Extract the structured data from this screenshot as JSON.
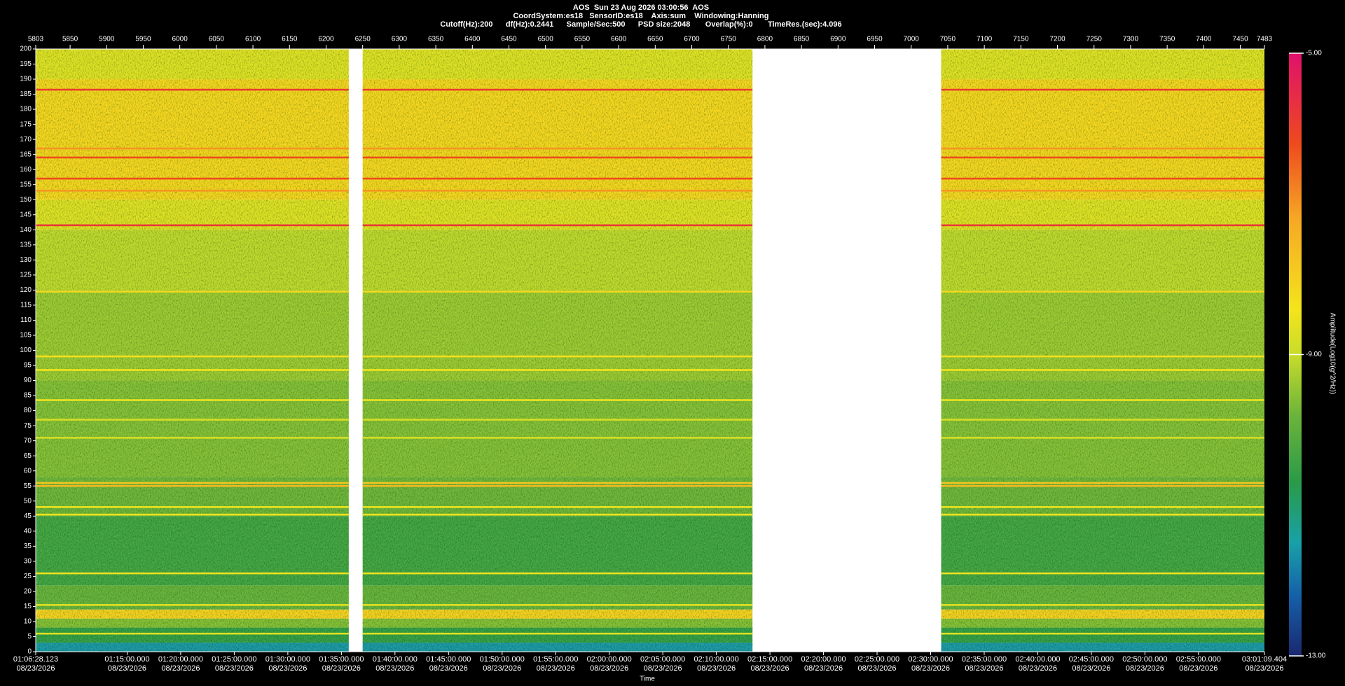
{
  "chart_data": {
    "type": "spectrogram",
    "title": "AOS  Sun 23 Aug 2026 03:00:56  AOS",
    "subtitle": [
      "CoordSystem:es18   SensorID:es18    Axis:sum    Windowing:Hanning",
      "Cutoff(Hz):200      df(Hz):0.2441      Sample/Sec:500      PSD size:2048       Overlap(%):0       TimeRes.(sec):4.096"
    ],
    "x_label": "Time",
    "xlim": [
      5803,
      7483
    ],
    "xticks": [
      5803,
      5850,
      5900,
      5950,
      6000,
      6050,
      6100,
      6150,
      6200,
      6250,
      6300,
      6350,
      6400,
      6450,
      6500,
      6550,
      6600,
      6650,
      6700,
      6750,
      6800,
      6850,
      6900,
      6950,
      7000,
      7050,
      7100,
      7150,
      7200,
      7250,
      7300,
      7350,
      7400,
      7450,
      7483
    ],
    "x2ticks": [
      {
        "value": 5803,
        "label": "01:06:28.123\n08/23/2026"
      },
      {
        "value": 5927.97,
        "label": "01:15:00.000\n08/23/2026"
      },
      {
        "value": 6001.21,
        "label": "01:20:00.000\n08/23/2026"
      },
      {
        "value": 6074.46,
        "label": "01:25:00.000\n08/23/2026"
      },
      {
        "value": 6147.7,
        "label": "01:30:00.000\n08/23/2026"
      },
      {
        "value": 6220.94,
        "label": "01:35:00.000\n08/23/2026"
      },
      {
        "value": 6294.18,
        "label": "01:40:00.000\n08/23/2026"
      },
      {
        "value": 6367.43,
        "label": "01:45:00.000\n08/23/2026"
      },
      {
        "value": 6440.67,
        "label": "01:50:00.000\n08/23/2026"
      },
      {
        "value": 6513.91,
        "label": "01:55:00.000\n08/23/2026"
      },
      {
        "value": 6587.15,
        "label": "02:00:00.000\n08/23/2026"
      },
      {
        "value": 6660.4,
        "label": "02:05:00.000\n08/23/2026"
      },
      {
        "value": 6733.64,
        "label": "02:10:00.000\n08/23/2026"
      },
      {
        "value": 6806.88,
        "label": "02:15:00.000\n08/23/2026"
      },
      {
        "value": 6880.12,
        "label": "02:20:00.000\n08/23/2026"
      },
      {
        "value": 6953.37,
        "label": "02:25:00.000\n08/23/2026"
      },
      {
        "value": 7026.61,
        "label": "02:30:00.000\n08/23/2026"
      },
      {
        "value": 7099.85,
        "label": "02:35:00.000\n08/23/2026"
      },
      {
        "value": 7173.09,
        "label": "02:40:00.000\n08/23/2026"
      },
      {
        "value": 7246.34,
        "label": "02:45:00.000\n08/23/2026"
      },
      {
        "value": 7319.58,
        "label": "02:50:00.000\n08/23/2026"
      },
      {
        "value": 7392.82,
        "label": "02:55:00.000\n08/23/2026"
      },
      {
        "value": 7483,
        "label": "03:01:09.404\n08/23/2026"
      }
    ],
    "ylim": [
      0,
      200
    ],
    "yticks": [
      0,
      5,
      10,
      15,
      20,
      25,
      30,
      35,
      40,
      45,
      50,
      55,
      60,
      65,
      70,
      75,
      80,
      85,
      90,
      95,
      100,
      105,
      110,
      115,
      120,
      125,
      130,
      135,
      140,
      145,
      150,
      155,
      160,
      165,
      170,
      175,
      180,
      185,
      190,
      195,
      200
    ],
    "segments": [
      [
        5803,
        6231
      ],
      [
        6250,
        6783
      ],
      [
        7041,
        7483
      ]
    ],
    "bands": {
      "edges": [
        0,
        3,
        8,
        11,
        14,
        22,
        45,
        58,
        90,
        120,
        140,
        150,
        190,
        200
      ],
      "values": [
        -11.6,
        -10.6,
        -9.6,
        -8.0,
        -9.9,
        -10.4,
        -9.8,
        -9.6,
        -9.4,
        -9.1,
        -8.7,
        -8.1,
        -8.7
      ]
    },
    "lines": {
      "freqs": [
        186.5,
        167,
        164,
        157,
        153,
        141.5,
        119.5,
        98,
        93.5,
        83.5,
        77,
        71,
        56,
        55,
        48,
        45.5,
        26,
        15.5,
        6
      ],
      "values": [
        -5.9,
        -7.0,
        -6.2,
        -6.2,
        -7.0,
        -5.8,
        -8.2,
        -8.3,
        -8.4,
        -8.5,
        -8.8,
        -8.8,
        -7.8,
        -7.5,
        -8.5,
        -8.5,
        -8.5,
        -8.7,
        -8.7
      ]
    },
    "colorbar": {
      "label": "Amplitude(Log10(g^2/Hz))",
      "lim": [
        -13,
        -5
      ],
      "ticks": [
        {
          "value": -5,
          "label": "-5.00"
        },
        {
          "value": -9,
          "label": "-9.00"
        },
        {
          "value": -13,
          "label": "-13.00"
        }
      ],
      "colorscale": [
        [
          -13,
          "#1a2870"
        ],
        [
          -12.2,
          "#1560a8"
        ],
        [
          -11.5,
          "#18a0a8"
        ],
        [
          -10.7,
          "#2a9a48"
        ],
        [
          -9.8,
          "#6cb43a"
        ],
        [
          -9,
          "#c8dc2a"
        ],
        [
          -8.4,
          "#f4e41c"
        ],
        [
          -7.2,
          "#f6a824"
        ],
        [
          -6.2,
          "#ee4a1e"
        ],
        [
          -5,
          "#e0106c"
        ]
      ]
    }
  }
}
